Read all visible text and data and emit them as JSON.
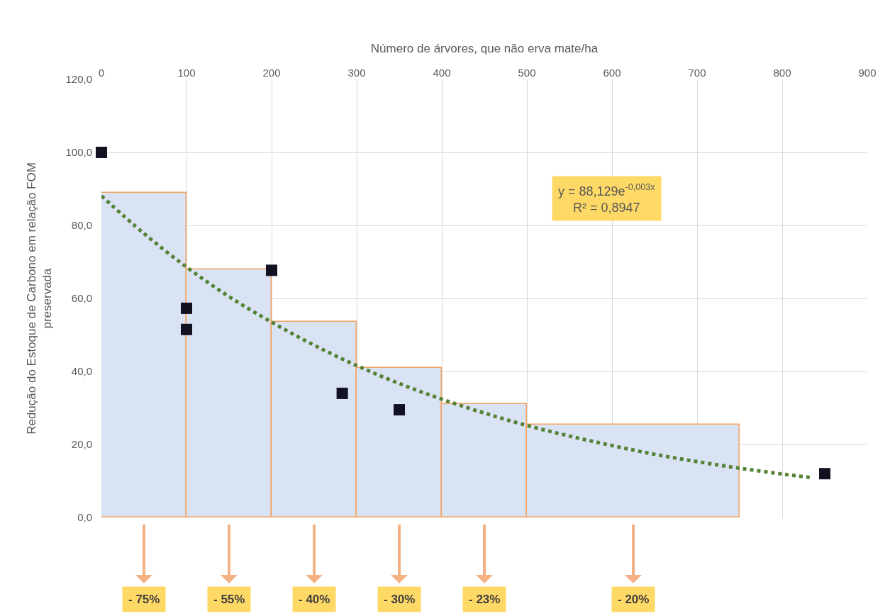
{
  "chart_data": {
    "type": "scatter",
    "xlabel": "Número de árvores, que não erva mate/ha",
    "ylabel": "Redução do Estoque de Carbono em relação FOM\npreservada",
    "xlim": [
      0,
      900
    ],
    "xticks": [
      0,
      100,
      200,
      300,
      400,
      500,
      600,
      700,
      800,
      900
    ],
    "ylim": [
      0,
      120
    ],
    "yticks": [
      {
        "value": 0,
        "label": "0,0"
      },
      {
        "value": 20,
        "label": "20,0"
      },
      {
        "value": 40,
        "label": "40,0"
      },
      {
        "value": 60,
        "label": "60,0"
      },
      {
        "value": 80,
        "label": "80,0"
      },
      {
        "value": 100,
        "label": "100,0"
      },
      {
        "value": 120,
        "label": "120,0"
      }
    ],
    "grid": true,
    "series": [
      {
        "type": "bar",
        "color": "#dae3f3",
        "x": [
          50,
          150,
          250,
          350,
          450,
          625
        ],
        "values": [
          89,
          68,
          53.5,
          41,
          31,
          25.5
        ]
      },
      {
        "type": "line",
        "color": "#548235",
        "line_style": "dotted",
        "marker": "none",
        "x": [
          0,
          50,
          100,
          150,
          200,
          250,
          300,
          350,
          400,
          450,
          500,
          550,
          600,
          650,
          700,
          750,
          800,
          835
        ],
        "values": [
          88.1,
          77.8,
          68.6,
          60.5,
          53.5,
          47.2,
          41.6,
          36.7,
          32.4,
          28.6,
          25.2,
          22.3,
          19.7,
          17.3,
          15.3,
          13.5,
          11.9,
          10.9
        ]
      },
      {
        "color": "#111122",
        "marker": "square",
        "x": [
          0,
          100,
          100,
          200,
          283,
          350,
          850
        ],
        "values": [
          100,
          57.3,
          51.5,
          67.7,
          34,
          29.5,
          12
        ]
      }
    ],
    "annotations": [
      "y = 88,129e$^{-0,003x}$\nR² = 0,8947",
      {
        "text": "- 75%",
        "x": 50,
        "y": 0
      },
      {
        "text": "- 55%",
        "x": 150,
        "y": 0
      },
      {
        "text": "- 40%",
        "x": 250,
        "y": 0
      },
      {
        "text": "- 30%",
        "x": 350,
        "y": 0
      },
      {
        "text": "- 23%",
        "x": 450,
        "y": 0
      },
      {
        "text": "- 20%",
        "x": 625,
        "y": 0
      }
    ]
  }
}
